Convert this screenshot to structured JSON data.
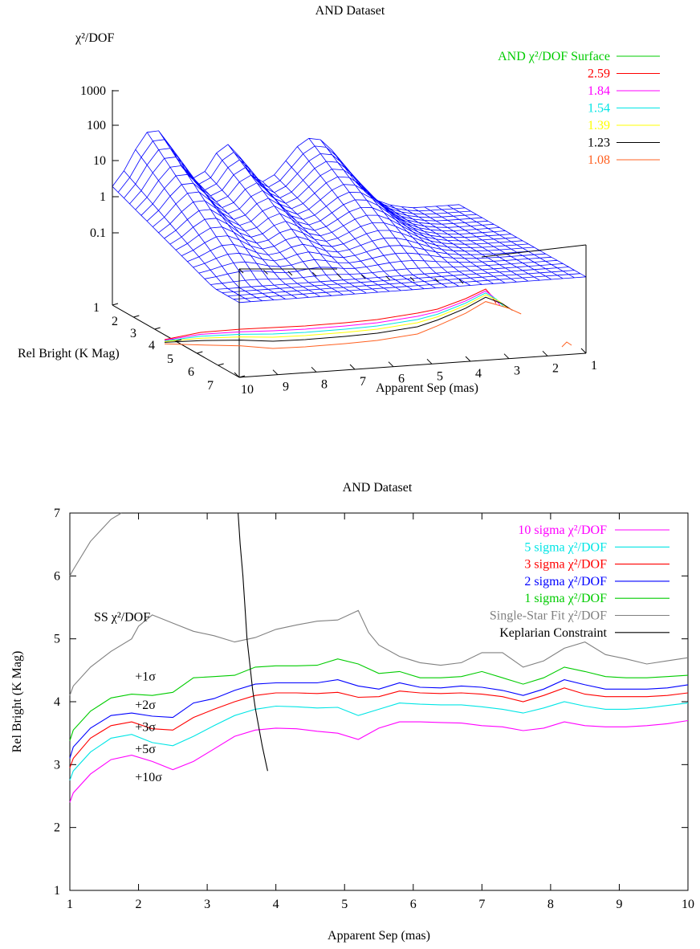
{
  "chart_data": [
    {
      "type": "surface",
      "title": "AND Dataset",
      "zlabel": "χ²/DOF",
      "xlabel": "Apparent Sep (mas)",
      "ylabel": "Rel Bright (K Mag)",
      "x_ticks": [
        "10",
        "9",
        "8",
        "7",
        "6",
        "5",
        "4",
        "3",
        "2",
        "1"
      ],
      "y_ticks": [
        "1",
        "2",
        "3",
        "4",
        "5",
        "6",
        "7"
      ],
      "z_ticks": [
        "1000",
        "100",
        "10",
        "1",
        "0.1"
      ],
      "z_scale": "log",
      "xlim": [
        1,
        10
      ],
      "ylim": [
        1,
        7
      ],
      "legend_position": "top-right",
      "legend": [
        {
          "label": "AND χ²/DOF Surface",
          "color": "#00cc00"
        },
        {
          "label": "2.59",
          "color": "#ff0000"
        },
        {
          "label": "1.84",
          "color": "#ff00ff"
        },
        {
          "label": "1.54",
          "color": "#00e5e5"
        },
        {
          "label": "1.39",
          "color": "#ffff00"
        },
        {
          "label": "1.23",
          "color": "#000000"
        },
        {
          "label": "1.08",
          "color": "#ff6020"
        }
      ],
      "surface_color": "#0000ff"
    },
    {
      "type": "line",
      "title": "AND Dataset",
      "xlabel": "Apparent Sep (mas)",
      "ylabel": "Rel Bright (K Mag)",
      "xlim": [
        1,
        10
      ],
      "ylim": [
        1,
        7
      ],
      "x_ticks": [
        1,
        2,
        3,
        4,
        5,
        6,
        7,
        8,
        9,
        10
      ],
      "y_ticks": [
        1,
        2,
        3,
        4,
        5,
        6,
        7
      ],
      "legend_position": "top-right",
      "annotations": [
        {
          "text": "SS χ²/DOF",
          "x": 1.35,
          "y": 5.35
        },
        {
          "text": "+1σ",
          "x": 1.95,
          "y": 4.4
        },
        {
          "text": "+2σ",
          "x": 1.95,
          "y": 3.95
        },
        {
          "text": "+3σ",
          "x": 1.95,
          "y": 3.6
        },
        {
          "text": "+5σ",
          "x": 1.95,
          "y": 3.25
        },
        {
          "text": "+10σ",
          "x": 1.95,
          "y": 2.8
        }
      ],
      "series": [
        {
          "name": "10 sigma χ²/DOF",
          "color": "#ff00ff",
          "x": [
            1,
            1.05,
            1.3,
            1.6,
            1.9,
            2.2,
            2.5,
            2.8,
            3.1,
            3.4,
            3.7,
            4.0,
            4.3,
            4.6,
            4.9,
            5.2,
            5.5,
            5.8,
            6.1,
            6.4,
            6.7,
            7.0,
            7.3,
            7.6,
            7.9,
            8.2,
            8.5,
            8.8,
            9.1,
            9.4,
            9.7,
            10
          ],
          "y": [
            2.4,
            2.55,
            2.85,
            3.08,
            3.15,
            3.05,
            2.92,
            3.05,
            3.25,
            3.45,
            3.55,
            3.58,
            3.57,
            3.53,
            3.5,
            3.4,
            3.58,
            3.68,
            3.68,
            3.67,
            3.66,
            3.62,
            3.6,
            3.54,
            3.58,
            3.68,
            3.62,
            3.6,
            3.6,
            3.62,
            3.65,
            3.7
          ]
        },
        {
          "name": "5 sigma χ²/DOF",
          "color": "#00e5e5",
          "x": [
            1,
            1.05,
            1.3,
            1.6,
            1.9,
            2.2,
            2.5,
            2.8,
            3.1,
            3.4,
            3.7,
            4.0,
            4.3,
            4.6,
            4.9,
            5.2,
            5.5,
            5.8,
            6.1,
            6.4,
            6.7,
            7.0,
            7.3,
            7.6,
            7.9,
            8.2,
            8.5,
            8.8,
            9.1,
            9.4,
            9.7,
            10
          ],
          "y": [
            2.75,
            2.9,
            3.2,
            3.42,
            3.48,
            3.35,
            3.3,
            3.45,
            3.62,
            3.78,
            3.88,
            3.93,
            3.92,
            3.9,
            3.91,
            3.78,
            3.88,
            3.98,
            3.96,
            3.95,
            3.95,
            3.92,
            3.88,
            3.82,
            3.9,
            4.0,
            3.93,
            3.88,
            3.88,
            3.9,
            3.94,
            3.98
          ]
        },
        {
          "name": "3 sigma χ²/DOF",
          "color": "#ff0000",
          "x": [
            1,
            1.05,
            1.3,
            1.6,
            1.9,
            2.2,
            2.5,
            2.8,
            3.1,
            3.4,
            3.7,
            4.0,
            4.3,
            4.6,
            4.9,
            5.2,
            5.5,
            5.8,
            6.1,
            6.4,
            6.7,
            7.0,
            7.3,
            7.6,
            7.9,
            8.2,
            8.5,
            8.8,
            9.1,
            9.4,
            9.7,
            10
          ],
          "y": [
            2.95,
            3.1,
            3.42,
            3.62,
            3.68,
            3.57,
            3.55,
            3.75,
            3.88,
            4.0,
            4.1,
            4.14,
            4.14,
            4.13,
            4.15,
            4.07,
            4.08,
            4.17,
            4.14,
            4.13,
            4.14,
            4.12,
            4.08,
            4.0,
            4.1,
            4.22,
            4.12,
            4.08,
            4.08,
            4.08,
            4.1,
            4.14
          ]
        },
        {
          "name": "2 sigma χ²/DOF",
          "color": "#0000ff",
          "x": [
            1,
            1.05,
            1.3,
            1.6,
            1.9,
            2.2,
            2.5,
            2.8,
            3.1,
            3.4,
            3.7,
            4.0,
            4.3,
            4.6,
            4.9,
            5.2,
            5.5,
            5.8,
            6.1,
            6.4,
            6.7,
            7.0,
            7.3,
            7.6,
            7.9,
            8.2,
            8.5,
            8.8,
            9.1,
            9.4,
            9.7,
            10
          ],
          "y": [
            3.1,
            3.28,
            3.58,
            3.78,
            3.82,
            3.77,
            3.75,
            3.98,
            4.05,
            4.18,
            4.28,
            4.3,
            4.3,
            4.3,
            4.35,
            4.25,
            4.2,
            4.3,
            4.23,
            4.22,
            4.25,
            4.23,
            4.18,
            4.1,
            4.2,
            4.35,
            4.27,
            4.2,
            4.2,
            4.2,
            4.22,
            4.27
          ]
        },
        {
          "name": "1 sigma χ²/DOF",
          "color": "#00cc00",
          "x": [
            1,
            1.05,
            1.3,
            1.6,
            1.9,
            2.2,
            2.5,
            2.8,
            3.1,
            3.4,
            3.7,
            4.0,
            4.3,
            4.6,
            4.9,
            5.2,
            5.5,
            5.8,
            6.1,
            6.4,
            6.7,
            7.0,
            7.3,
            7.6,
            7.9,
            8.2,
            8.5,
            8.8,
            9.1,
            9.4,
            9.7,
            10
          ],
          "y": [
            3.38,
            3.55,
            3.85,
            4.06,
            4.12,
            4.1,
            4.15,
            4.38,
            4.4,
            4.42,
            4.55,
            4.57,
            4.57,
            4.58,
            4.68,
            4.6,
            4.45,
            4.48,
            4.38,
            4.38,
            4.4,
            4.48,
            4.38,
            4.28,
            4.38,
            4.55,
            4.48,
            4.4,
            4.38,
            4.38,
            4.4,
            4.42
          ]
        },
        {
          "name": "Single-Star Fit χ²/DOF",
          "color": "#808080",
          "x": [
            1,
            1.05,
            1.3,
            1.6,
            1.9,
            2.0,
            2.2,
            2.5,
            2.8,
            3.1,
            3.4,
            3.7,
            4.0,
            4.3,
            4.6,
            4.9,
            5.2,
            5.35,
            5.5,
            5.8,
            6.1,
            6.4,
            6.7,
            7.0,
            7.3,
            7.6,
            7.9,
            8.2,
            8.5,
            8.8,
            9.1,
            9.4,
            9.7,
            10
          ],
          "y": [
            4.1,
            4.25,
            4.55,
            4.8,
            5.0,
            5.2,
            5.38,
            5.25,
            5.12,
            5.05,
            4.95,
            5.02,
            5.15,
            5.22,
            5.28,
            5.3,
            5.45,
            5.1,
            4.9,
            4.72,
            4.62,
            4.58,
            4.62,
            4.78,
            4.78,
            4.55,
            4.65,
            4.85,
            4.95,
            4.75,
            4.68,
            4.6,
            4.65,
            4.7
          ]
        },
        {
          "name": "Keplarian Constraint",
          "color": "#000000",
          "x": [
            3.45,
            3.48,
            3.52,
            3.55,
            3.58,
            3.62,
            3.66,
            3.7,
            3.75,
            3.8,
            3.85,
            3.88
          ],
          "y": [
            7.0,
            6.5,
            6.0,
            5.5,
            5.0,
            4.6,
            4.2,
            3.9,
            3.6,
            3.3,
            3.05,
            2.9
          ]
        },
        {
          "name": "",
          "color": "#808080",
          "x": [
            1,
            1.05,
            1.3,
            1.6,
            1.75
          ],
          "y": [
            6.0,
            6.1,
            6.55,
            6.9,
            7.0
          ]
        }
      ]
    }
  ]
}
